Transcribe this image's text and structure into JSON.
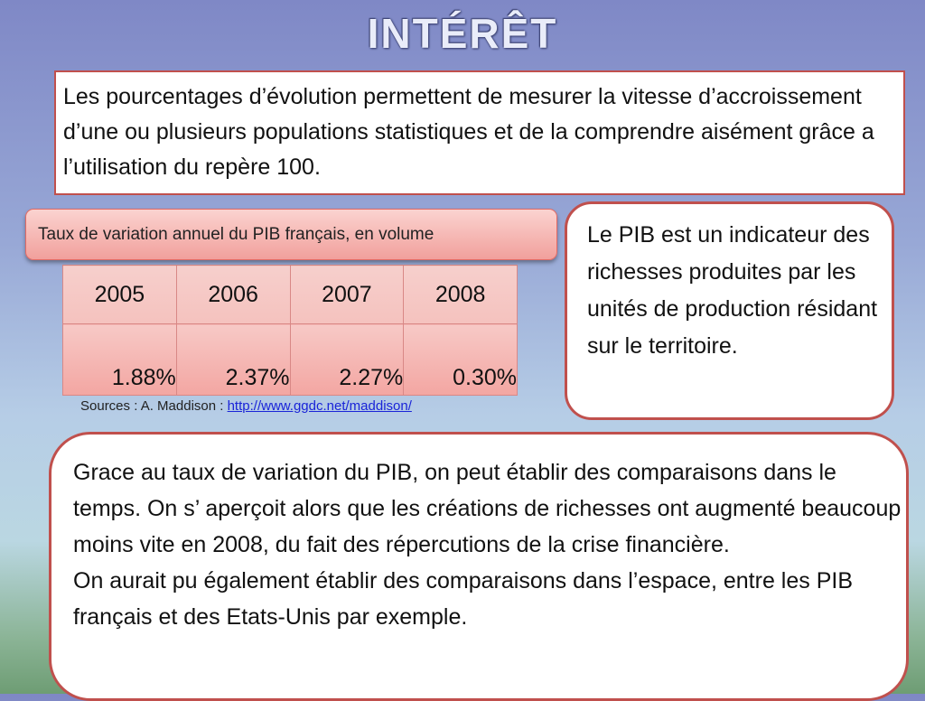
{
  "title": "INTÉRÊT",
  "intro": "Les pourcentages d’évolution permettent de mesurer la vitesse d’accroissement d’une ou plusieurs populations statistiques et de la comprendre aisément grâce a l’utilisation du repère 100.",
  "table": {
    "caption": "Taux de variation annuel du PIB français, en volume",
    "years": [
      "2005",
      "2006",
      "2007",
      "2008"
    ],
    "values": [
      "1.88%",
      "2.37%",
      "2.27%",
      "0.30%"
    ]
  },
  "source": {
    "label": "Sources : A. Maddison : ",
    "link": "http://www.ggdc.net/maddison/"
  },
  "pib_definition": "Le PIB est un indicateur des richesses produites par les unités de production résidant sur le territoire.",
  "conclusion": {
    "paragraph1": "Grace au taux de variation du PIB, on peut établir des comparaisons dans le temps. On s’ aperçoit alors que les créations de richesses ont augmenté beaucoup moins vite en 2008, du fait des répercutions de la crise financière.",
    "paragraph2": "On aurait pu également établir des comparaisons dans l’espace, entre les PIB français et des Etats-Unis par exemple."
  }
}
